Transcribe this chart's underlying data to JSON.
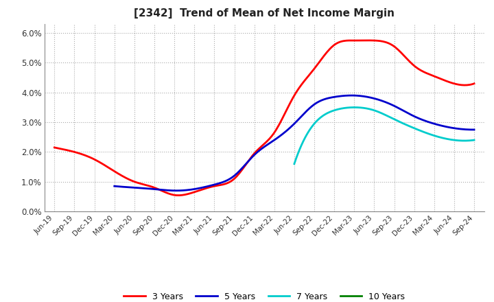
{
  "title": "[2342]  Trend of Mean of Net Income Margin",
  "ylim": [
    0.0,
    0.063
  ],
  "yticks": [
    0.0,
    0.01,
    0.02,
    0.03,
    0.04,
    0.05,
    0.06
  ],
  "ytick_labels": [
    "0.0%",
    "1.0%",
    "2.0%",
    "3.0%",
    "4.0%",
    "5.0%",
    "6.0%"
  ],
  "background_color": "#ffffff",
  "plot_bg_color": "#ffffff",
  "grid_color": "#aaaaaa",
  "series": {
    "3 Years": {
      "color": "#ff0000",
      "data": [
        [
          "Jun-19",
          0.0215
        ],
        [
          "Sep-19",
          0.02
        ],
        [
          "Dec-19",
          0.0175
        ],
        [
          "Mar-20",
          0.0135
        ],
        [
          "Jun-20",
          0.01
        ],
        [
          "Sep-20",
          0.008
        ],
        [
          "Dec-20",
          0.0055
        ],
        [
          "Mar-21",
          0.0065
        ],
        [
          "Jun-21",
          0.0085
        ],
        [
          "Sep-21",
          0.011
        ],
        [
          "Dec-21",
          0.0195
        ],
        [
          "Mar-22",
          0.0265
        ],
        [
          "Jun-22",
          0.039
        ],
        [
          "Sep-22",
          0.048
        ],
        [
          "Dec-22",
          0.056
        ],
        [
          "Mar-23",
          0.0575
        ],
        [
          "Jun-23",
          0.0575
        ],
        [
          "Sep-23",
          0.0555
        ],
        [
          "Dec-23",
          0.049
        ],
        [
          "Mar-24",
          0.0455
        ],
        [
          "Jun-24",
          0.043
        ],
        [
          "Sep-24",
          0.043
        ]
      ]
    },
    "5 Years": {
      "color": "#0000cc",
      "data": [
        [
          "Jun-19",
          null
        ],
        [
          "Sep-19",
          null
        ],
        [
          "Dec-19",
          null
        ],
        [
          "Mar-20",
          0.0085
        ],
        [
          "Jun-20",
          0.008
        ],
        [
          "Sep-20",
          0.0075
        ],
        [
          "Dec-20",
          0.007
        ],
        [
          "Mar-21",
          0.0075
        ],
        [
          "Jun-21",
          0.009
        ],
        [
          "Sep-21",
          0.012
        ],
        [
          "Dec-21",
          0.019
        ],
        [
          "Mar-22",
          0.024
        ],
        [
          "Jun-22",
          0.0295
        ],
        [
          "Sep-22",
          0.036
        ],
        [
          "Dec-22",
          0.0385
        ],
        [
          "Mar-23",
          0.039
        ],
        [
          "Jun-23",
          0.038
        ],
        [
          "Sep-23",
          0.0355
        ],
        [
          "Dec-23",
          0.032
        ],
        [
          "Mar-24",
          0.0295
        ],
        [
          "Jun-24",
          0.028
        ],
        [
          "Sep-24",
          0.0275
        ]
      ]
    },
    "7 Years": {
      "color": "#00cccc",
      "data": [
        [
          "Jun-19",
          null
        ],
        [
          "Sep-19",
          null
        ],
        [
          "Dec-19",
          null
        ],
        [
          "Mar-20",
          null
        ],
        [
          "Jun-20",
          null
        ],
        [
          "Sep-20",
          null
        ],
        [
          "Dec-20",
          null
        ],
        [
          "Mar-21",
          null
        ],
        [
          "Jun-21",
          null
        ],
        [
          "Sep-21",
          null
        ],
        [
          "Dec-21",
          null
        ],
        [
          "Mar-22",
          null
        ],
        [
          "Jun-22",
          0.016
        ],
        [
          "Sep-22",
          0.0295
        ],
        [
          "Dec-22",
          0.034
        ],
        [
          "Mar-23",
          0.035
        ],
        [
          "Jun-23",
          0.034
        ],
        [
          "Sep-23",
          0.031
        ],
        [
          "Dec-23",
          0.028
        ],
        [
          "Mar-24",
          0.0255
        ],
        [
          "Jun-24",
          0.024
        ],
        [
          "Sep-24",
          0.024
        ]
      ]
    },
    "10 Years": {
      "color": "#008000",
      "data": [
        [
          "Jun-19",
          null
        ],
        [
          "Sep-19",
          null
        ],
        [
          "Dec-19",
          null
        ],
        [
          "Mar-20",
          null
        ],
        [
          "Jun-20",
          null
        ],
        [
          "Sep-20",
          null
        ],
        [
          "Dec-20",
          null
        ],
        [
          "Mar-21",
          null
        ],
        [
          "Jun-21",
          null
        ],
        [
          "Sep-21",
          null
        ],
        [
          "Dec-21",
          null
        ],
        [
          "Mar-22",
          null
        ],
        [
          "Jun-22",
          null
        ],
        [
          "Sep-22",
          null
        ],
        [
          "Dec-22",
          null
        ],
        [
          "Mar-23",
          null
        ],
        [
          "Jun-23",
          null
        ],
        [
          "Sep-23",
          null
        ],
        [
          "Dec-23",
          null
        ],
        [
          "Mar-24",
          null
        ],
        [
          "Jun-24",
          null
        ],
        [
          "Sep-24",
          null
        ]
      ]
    }
  },
  "x_labels": [
    "Jun-19",
    "Sep-19",
    "Dec-19",
    "Mar-20",
    "Jun-20",
    "Sep-20",
    "Dec-20",
    "Mar-21",
    "Jun-21",
    "Sep-21",
    "Dec-21",
    "Mar-22",
    "Jun-22",
    "Sep-22",
    "Dec-22",
    "Mar-23",
    "Jun-23",
    "Sep-23",
    "Dec-23",
    "Mar-24",
    "Jun-24",
    "Sep-24"
  ],
  "legend_entries": [
    "3 Years",
    "5 Years",
    "7 Years",
    "10 Years"
  ],
  "legend_colors": [
    "#ff0000",
    "#0000cc",
    "#00cccc",
    "#008000"
  ]
}
